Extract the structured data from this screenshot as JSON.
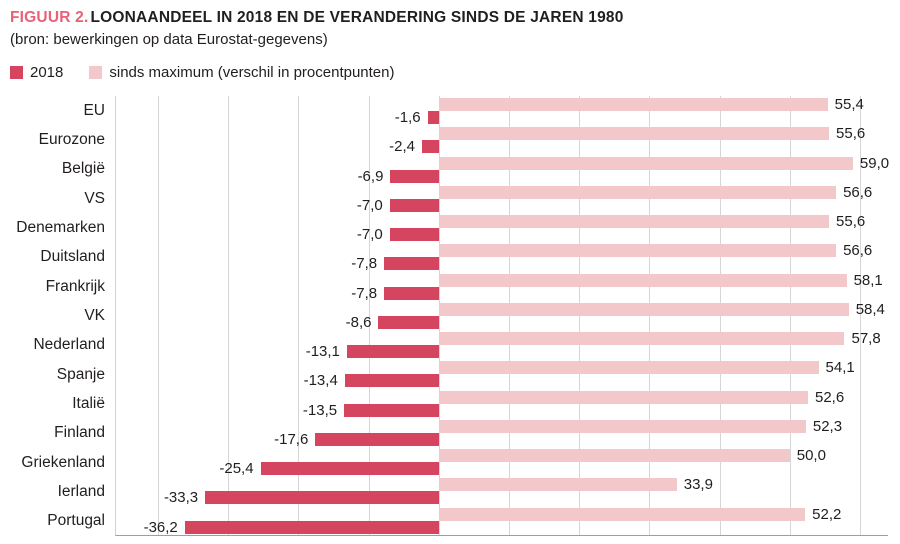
{
  "page": {
    "title_prefix": "FIGUUR 2.",
    "title_rest": "LOONAANDEEL IN 2018 EN DE VERANDERING SINDS DE JAREN 1980",
    "subtitle": "(bron: bewerkingen op data Eurostat-gegevens)"
  },
  "legend": {
    "items": [
      {
        "label": "2018",
        "color": "#d64560"
      },
      {
        "label": "sinds maximum (verschil in procentpunten)",
        "color": "#f3c8cb"
      }
    ]
  },
  "colors": {
    "accent": "#e96179",
    "text": "#221e1f",
    "grid": "#d6d6d6",
    "axis": "#9e9e9e",
    "bar_dark": "#d64560",
    "bar_light": "#f3c8cb"
  },
  "chart_data": {
    "type": "bar",
    "orientation": "horizontal",
    "title": "FIGUUR 2. LOONAANDEEL IN 2018 EN DE VERANDERING SINDS DE JAREN 1980",
    "subtitle": "(bron: bewerkingen op data Eurostat-gegevens)",
    "xlabel": "",
    "ylabel": "",
    "xlim": [
      -46,
      64
    ],
    "gridline_values": [
      -40,
      -30,
      -20,
      -10,
      0,
      10,
      20,
      30,
      40,
      50,
      60
    ],
    "grid": true,
    "legend_position": "top-left",
    "categories": [
      "EU",
      "Eurozone",
      "België",
      "VS",
      "Denemarken",
      "Duitsland",
      "Frankrijk",
      "VK",
      "Nederland",
      "Spanje",
      "Italië",
      "Finland",
      "Griekenland",
      "Ierland",
      "Portugal"
    ],
    "series": [
      {
        "name": "2018",
        "color": "#d64560",
        "values": [
          -1.6,
          -2.4,
          -6.9,
          -7.0,
          -7.0,
          -7.8,
          -7.8,
          -8.6,
          -13.1,
          -13.4,
          -13.5,
          -17.6,
          -25.4,
          -33.3,
          -36.2
        ]
      },
      {
        "name": "sinds maximum (verschil in procentpunten)",
        "color": "#f3c8cb",
        "values": [
          55.4,
          55.6,
          59.0,
          56.6,
          55.6,
          56.6,
          58.1,
          58.4,
          57.8,
          54.1,
          52.6,
          52.3,
          50.0,
          33.9,
          52.2
        ]
      }
    ],
    "value_labels": [
      [
        "-1,6",
        "-2,4",
        "-6,9",
        "-7,0",
        "-7,0",
        "-7,8",
        "-7,8",
        "-8,6",
        "-13,1",
        "-13,4",
        "-13,5",
        "-17,6",
        "-25,4",
        "-33,3",
        "-36,2"
      ],
      [
        "55,4",
        "55,6",
        "59,0",
        "56,6",
        "55,6",
        "56,6",
        "58,1",
        "58,4",
        "57,8",
        "54,1",
        "52,6",
        "52,3",
        "50,0",
        "33,9",
        "52,2"
      ]
    ]
  }
}
